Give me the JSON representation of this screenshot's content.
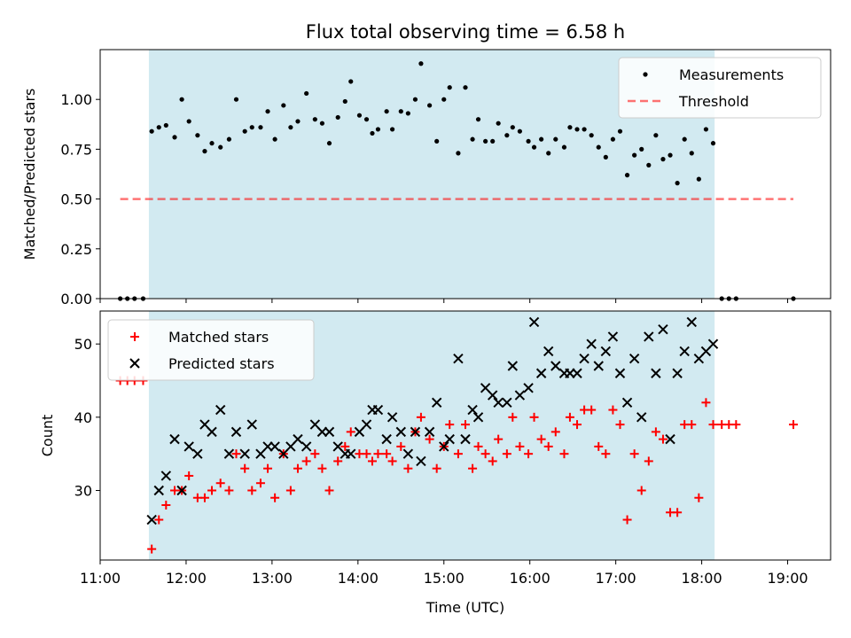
{
  "title": "Flux total observing time = 6.58 h",
  "colors": {
    "observing_window": "#add8e6",
    "measurements": "#000000",
    "threshold": "#ff0000",
    "matched": "#ff0000",
    "predicted": "#000000"
  },
  "chart_data": [
    {
      "type": "scatter",
      "title": "Flux total observing time = 6.58 h",
      "xlabel": "",
      "ylabel": "Matched/Predicted stars",
      "xlim": [
        "11:00",
        "19:30"
      ],
      "ylim": [
        0.0,
        1.25
      ],
      "yticks": [
        0.0,
        0.25,
        0.5,
        0.75,
        1.0
      ],
      "ytick_labels": [
        "0.00",
        "0.25",
        "0.50",
        "0.75",
        "1.00"
      ],
      "shaded_region": {
        "from": "11:34",
        "to": "18:09"
      },
      "legend_position": "upper right",
      "legend": [
        "Measurements",
        "Threshold"
      ],
      "series": [
        {
          "name": "Measurements",
          "marker": "dot",
          "points": [
            [
              "11:14",
              0.0
            ],
            [
              "11:19",
              0.0
            ],
            [
              "11:24",
              0.0
            ],
            [
              "11:30",
              0.0
            ],
            [
              "11:36",
              0.84
            ],
            [
              "11:41",
              0.86
            ],
            [
              "11:46",
              0.87
            ],
            [
              "11:52",
              0.81
            ],
            [
              "11:57",
              1.0
            ],
            [
              "12:02",
              0.89
            ],
            [
              "12:08",
              0.82
            ],
            [
              "12:13",
              0.74
            ],
            [
              "12:18",
              0.78
            ],
            [
              "12:24",
              0.76
            ],
            [
              "12:30",
              0.8
            ],
            [
              "12:35",
              1.0
            ],
            [
              "12:41",
              0.84
            ],
            [
              "12:46",
              0.86
            ],
            [
              "12:52",
              0.86
            ],
            [
              "12:57",
              0.94
            ],
            [
              "13:02",
              0.8
            ],
            [
              "13:08",
              0.97
            ],
            [
              "13:13",
              0.86
            ],
            [
              "13:18",
              0.89
            ],
            [
              "13:24",
              1.03
            ],
            [
              "13:30",
              0.9
            ],
            [
              "13:35",
              0.88
            ],
            [
              "13:40",
              0.78
            ],
            [
              "13:46",
              0.91
            ],
            [
              "13:51",
              0.99
            ],
            [
              "13:55",
              1.09
            ],
            [
              "14:01",
              0.92
            ],
            [
              "14:06",
              0.9
            ],
            [
              "14:10",
              0.83
            ],
            [
              "14:14",
              0.85
            ],
            [
              "14:20",
              0.94
            ],
            [
              "14:24",
              0.85
            ],
            [
              "14:30",
              0.94
            ],
            [
              "14:35",
              0.93
            ],
            [
              "14:40",
              1.0
            ],
            [
              "14:44",
              1.18
            ],
            [
              "14:50",
              0.97
            ],
            [
              "14:55",
              0.79
            ],
            [
              "15:00",
              1.0
            ],
            [
              "15:04",
              1.06
            ],
            [
              "15:10",
              0.73
            ],
            [
              "15:15",
              1.06
            ],
            [
              "15:20",
              0.8
            ],
            [
              "15:24",
              0.9
            ],
            [
              "15:29",
              0.79
            ],
            [
              "15:34",
              0.79
            ],
            [
              "15:38",
              0.88
            ],
            [
              "15:44",
              0.82
            ],
            [
              "15:48",
              0.86
            ],
            [
              "15:53",
              0.84
            ],
            [
              "15:59",
              0.79
            ],
            [
              "16:03",
              0.76
            ],
            [
              "16:08",
              0.8
            ],
            [
              "16:13",
              0.73
            ],
            [
              "16:18",
              0.8
            ],
            [
              "16:24",
              0.76
            ],
            [
              "16:28",
              0.86
            ],
            [
              "16:33",
              0.85
            ],
            [
              "16:38",
              0.85
            ],
            [
              "16:43",
              0.82
            ],
            [
              "16:48",
              0.76
            ],
            [
              "16:53",
              0.71
            ],
            [
              "16:58",
              0.8
            ],
            [
              "17:03",
              0.84
            ],
            [
              "17:08",
              0.62
            ],
            [
              "17:13",
              0.72
            ],
            [
              "17:18",
              0.75
            ],
            [
              "17:23",
              0.67
            ],
            [
              "17:28",
              0.82
            ],
            [
              "17:33",
              0.7
            ],
            [
              "17:38",
              0.72
            ],
            [
              "17:43",
              0.58
            ],
            [
              "17:48",
              0.8
            ],
            [
              "17:53",
              0.73
            ],
            [
              "17:58",
              0.6
            ],
            [
              "18:03",
              0.85
            ],
            [
              "18:08",
              0.78
            ],
            [
              "18:14",
              0.0
            ],
            [
              "18:19",
              0.0
            ],
            [
              "18:24",
              0.0
            ],
            [
              "19:04",
              0.0
            ]
          ]
        },
        {
          "name": "Threshold",
          "marker": "dashed-line",
          "points": [
            [
              "11:14",
              0.5
            ],
            [
              "19:04",
              0.5
            ]
          ]
        }
      ]
    },
    {
      "type": "scatter",
      "xlabel": "Time (UTC)",
      "ylabel": "Count",
      "xlim": [
        "11:00",
        "19:30"
      ],
      "ylim": [
        20.5,
        54.5
      ],
      "yticks": [
        30,
        40,
        50
      ],
      "xticks": [
        "11:00",
        "12:00",
        "13:00",
        "14:00",
        "15:00",
        "16:00",
        "17:00",
        "18:00",
        "19:00"
      ],
      "shaded_region": {
        "from": "11:34",
        "to": "18:09"
      },
      "legend_position": "upper left",
      "legend": [
        "Matched stars",
        "Predicted stars"
      ],
      "series": [
        {
          "name": "Matched stars",
          "marker": "plus",
          "points": [
            [
              "11:14",
              45
            ],
            [
              "11:19",
              45
            ],
            [
              "11:24",
              45
            ],
            [
              "11:30",
              45
            ],
            [
              "11:36",
              22
            ],
            [
              "11:41",
              26
            ],
            [
              "11:46",
              28
            ],
            [
              "11:52",
              30
            ],
            [
              "11:57",
              30
            ],
            [
              "12:02",
              32
            ],
            [
              "12:08",
              29
            ],
            [
              "12:13",
              29
            ],
            [
              "12:18",
              30
            ],
            [
              "12:24",
              31
            ],
            [
              "12:30",
              30
            ],
            [
              "12:35",
              35
            ],
            [
              "12:41",
              33
            ],
            [
              "12:46",
              30
            ],
            [
              "12:52",
              31
            ],
            [
              "12:57",
              33
            ],
            [
              "13:02",
              29
            ],
            [
              "13:08",
              35
            ],
            [
              "13:13",
              30
            ],
            [
              "13:18",
              33
            ],
            [
              "13:24",
              34
            ],
            [
              "13:30",
              35
            ],
            [
              "13:35",
              33
            ],
            [
              "13:40",
              30
            ],
            [
              "13:46",
              34
            ],
            [
              "13:51",
              36
            ],
            [
              "13:55",
              38
            ],
            [
              "14:01",
              35
            ],
            [
              "14:06",
              35
            ],
            [
              "14:10",
              34
            ],
            [
              "14:14",
              35
            ],
            [
              "14:20",
              35
            ],
            [
              "14:24",
              34
            ],
            [
              "14:30",
              36
            ],
            [
              "14:35",
              33
            ],
            [
              "14:40",
              38
            ],
            [
              "14:44",
              40
            ],
            [
              "14:50",
              37
            ],
            [
              "14:55",
              33
            ],
            [
              "15:00",
              36
            ],
            [
              "15:04",
              39
            ],
            [
              "15:10",
              35
            ],
            [
              "15:15",
              39
            ],
            [
              "15:20",
              33
            ],
            [
              "15:24",
              36
            ],
            [
              "15:29",
              35
            ],
            [
              "15:34",
              34
            ],
            [
              "15:38",
              37
            ],
            [
              "15:44",
              35
            ],
            [
              "15:48",
              40
            ],
            [
              "15:53",
              36
            ],
            [
              "15:59",
              35
            ],
            [
              "16:03",
              40
            ],
            [
              "16:08",
              37
            ],
            [
              "16:13",
              36
            ],
            [
              "16:18",
              38
            ],
            [
              "16:24",
              35
            ],
            [
              "16:28",
              40
            ],
            [
              "16:33",
              39
            ],
            [
              "16:38",
              41
            ],
            [
              "16:43",
              41
            ],
            [
              "16:48",
              36
            ],
            [
              "16:53",
              35
            ],
            [
              "16:58",
              41
            ],
            [
              "17:03",
              39
            ],
            [
              "17:08",
              26
            ],
            [
              "17:13",
              35
            ],
            [
              "17:18",
              30
            ],
            [
              "17:23",
              34
            ],
            [
              "17:28",
              38
            ],
            [
              "17:33",
              37
            ],
            [
              "17:38",
              27
            ],
            [
              "17:43",
              27
            ],
            [
              "17:48",
              39
            ],
            [
              "17:53",
              39
            ],
            [
              "17:58",
              29
            ],
            [
              "18:03",
              42
            ],
            [
              "18:08",
              39
            ],
            [
              "18:14",
              39
            ],
            [
              "18:19",
              39
            ],
            [
              "18:24",
              39
            ],
            [
              "19:04",
              39
            ]
          ]
        },
        {
          "name": "Predicted stars",
          "marker": "x",
          "points": [
            [
              "11:36",
              26
            ],
            [
              "11:41",
              30
            ],
            [
              "11:46",
              32
            ],
            [
              "11:52",
              37
            ],
            [
              "11:57",
              30
            ],
            [
              "12:02",
              36
            ],
            [
              "12:08",
              35
            ],
            [
              "12:13",
              39
            ],
            [
              "12:18",
              38
            ],
            [
              "12:24",
              41
            ],
            [
              "12:30",
              35
            ],
            [
              "12:35",
              38
            ],
            [
              "12:41",
              35
            ],
            [
              "12:46",
              39
            ],
            [
              "12:52",
              35
            ],
            [
              "12:57",
              36
            ],
            [
              "13:02",
              36
            ],
            [
              "13:08",
              35
            ],
            [
              "13:13",
              36
            ],
            [
              "13:18",
              37
            ],
            [
              "13:24",
              36
            ],
            [
              "13:30",
              39
            ],
            [
              "13:35",
              38
            ],
            [
              "13:40",
              38
            ],
            [
              "13:46",
              36
            ],
            [
              "13:51",
              35
            ],
            [
              "13:55",
              35
            ],
            [
              "14:01",
              38
            ],
            [
              "14:06",
              39
            ],
            [
              "14:10",
              41
            ],
            [
              "14:14",
              41
            ],
            [
              "14:20",
              37
            ],
            [
              "14:24",
              40
            ],
            [
              "14:30",
              38
            ],
            [
              "14:35",
              35
            ],
            [
              "14:40",
              38
            ],
            [
              "14:44",
              34
            ],
            [
              "14:50",
              38
            ],
            [
              "14:55",
              42
            ],
            [
              "15:00",
              36
            ],
            [
              "15:04",
              37
            ],
            [
              "15:10",
              48
            ],
            [
              "15:15",
              37
            ],
            [
              "15:20",
              41
            ],
            [
              "15:24",
              40
            ],
            [
              "15:29",
              44
            ],
            [
              "15:34",
              43
            ],
            [
              "15:38",
              42
            ],
            [
              "15:44",
              42
            ],
            [
              "15:48",
              47
            ],
            [
              "15:53",
              43
            ],
            [
              "15:59",
              44
            ],
            [
              "16:03",
              53
            ],
            [
              "16:08",
              46
            ],
            [
              "16:13",
              49
            ],
            [
              "16:18",
              47
            ],
            [
              "16:24",
              46
            ],
            [
              "16:28",
              46
            ],
            [
              "16:33",
              46
            ],
            [
              "16:38",
              48
            ],
            [
              "16:43",
              50
            ],
            [
              "16:48",
              47
            ],
            [
              "16:53",
              49
            ],
            [
              "16:58",
              51
            ],
            [
              "17:03",
              46
            ],
            [
              "17:08",
              42
            ],
            [
              "17:13",
              48
            ],
            [
              "17:18",
              40
            ],
            [
              "17:23",
              51
            ],
            [
              "17:28",
              46
            ],
            [
              "17:33",
              52
            ],
            [
              "17:38",
              37
            ],
            [
              "17:43",
              46
            ],
            [
              "17:48",
              49
            ],
            [
              "17:53",
              53
            ],
            [
              "17:58",
              48
            ],
            [
              "18:03",
              49
            ],
            [
              "18:08",
              50
            ]
          ]
        }
      ]
    }
  ]
}
